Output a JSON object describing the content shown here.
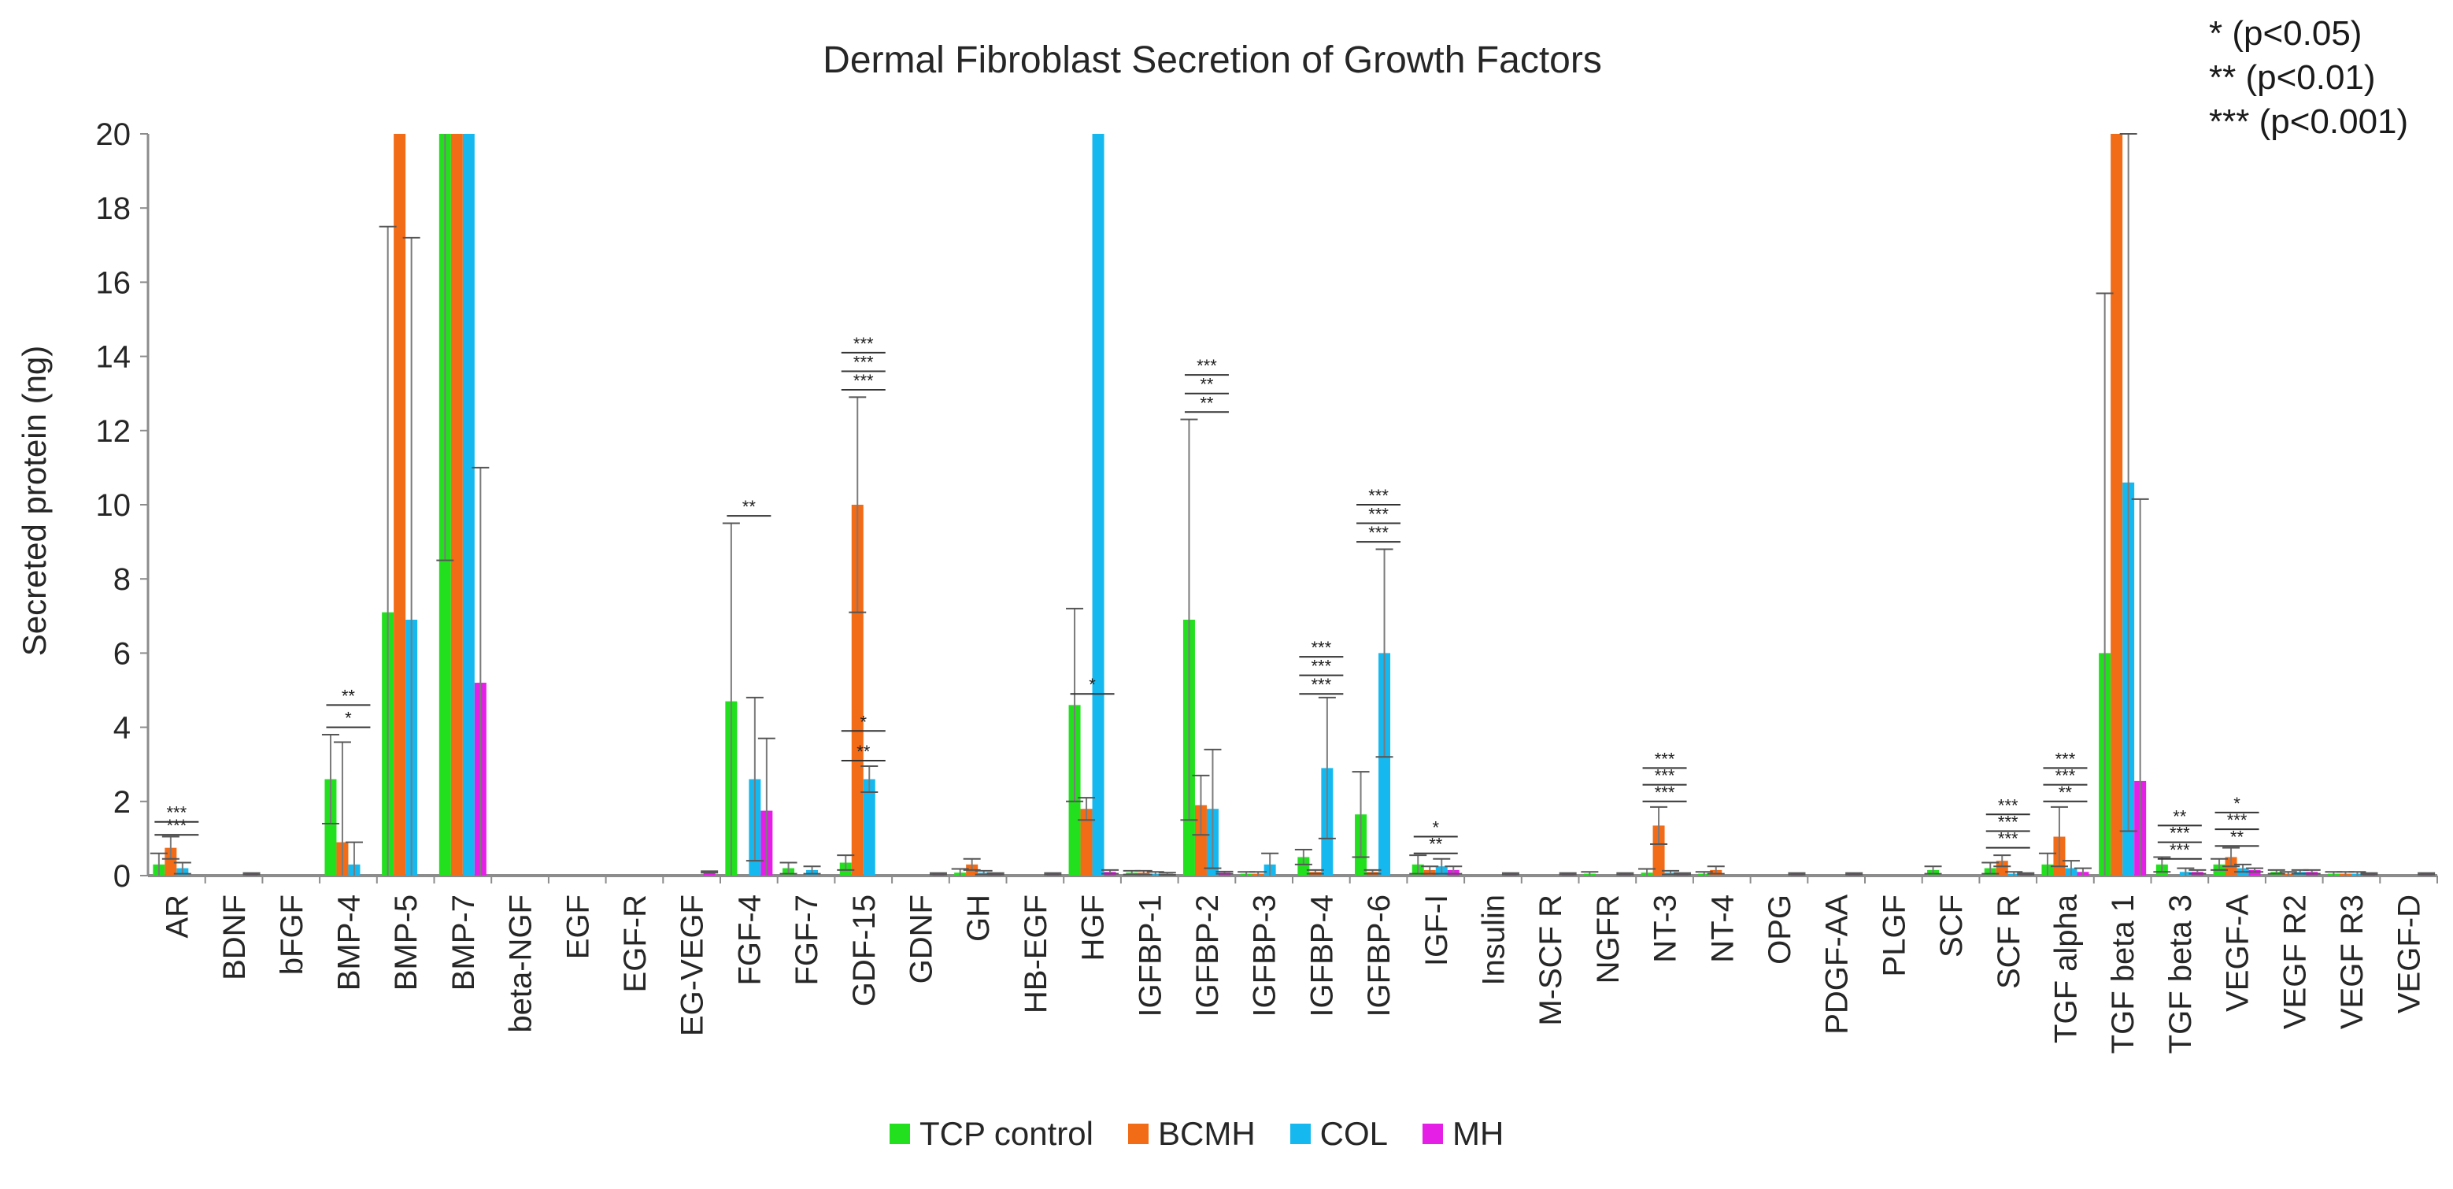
{
  "chart_data": {
    "type": "bar",
    "title": "Dermal Fibroblast Secretion of Growth Factors",
    "xlabel": "",
    "ylabel": "Secreted protein (ng)",
    "ylim": [
      0,
      20
    ],
    "yticks": [
      0,
      2,
      4,
      6,
      8,
      10,
      12,
      14,
      16,
      18,
      20
    ],
    "grid": false,
    "legend_position": "bottom",
    "categories": [
      "AR",
      "BDNF",
      "bFGF",
      "BMP-4",
      "BMP-5",
      "BMP-7",
      "beta-NGF",
      "EGF",
      "EGF-R",
      "EG-VEGF",
      "FGF-4",
      "FGF-7",
      "GDF-15",
      "GDNF",
      "GH",
      "HB-EGF",
      "HGF",
      "IGFBP-1",
      "IGFBP-2",
      "IGFBP-3",
      "IGFBP-4",
      "IGFBP-6",
      "IGF-I",
      "Insulin",
      "M-SCF R",
      "NGFR",
      "NT-3",
      "NT-4",
      "OPG",
      "PDGF-AA",
      "PLGF",
      "SCF",
      "SCF R",
      "TGF alpha",
      "TGF beta 1",
      "TGF beta 3",
      "VEGF-A",
      "VEGF R2",
      "VEGF R3",
      "VEGF-D"
    ],
    "series": [
      {
        "name": "TCP control",
        "color": "#22e01e",
        "values": [
          0.3,
          0,
          0,
          2.6,
          7.1,
          20,
          0,
          0,
          0,
          0,
          4.7,
          0.2,
          0.35,
          0,
          0.08,
          0,
          4.6,
          0.08,
          6.9,
          0.05,
          0.5,
          1.65,
          0.3,
          0,
          0,
          0.05,
          0.08,
          0.05,
          0,
          0,
          0,
          0.15,
          0.2,
          0.3,
          6.0,
          0.3,
          0.3,
          0.1,
          0.05,
          0
        ],
        "errors": [
          0.3,
          0,
          0,
          1.2,
          10.4,
          11.5,
          0,
          0,
          0,
          0,
          4.8,
          0.15,
          0.2,
          0,
          0.1,
          0,
          2.6,
          0.05,
          5.4,
          0.05,
          0.2,
          1.15,
          0.25,
          0,
          0,
          0.05,
          0.1,
          0.05,
          0,
          0,
          0,
          0.1,
          0.15,
          0.3,
          9.7,
          0.2,
          0.15,
          0.05,
          0.05,
          0
        ]
      },
      {
        "name": "BCMH",
        "color": "#f26b17",
        "values": [
          0.75,
          0,
          0,
          0.9,
          20,
          20,
          0,
          0,
          0,
          0,
          0,
          0,
          10.0,
          0,
          0.3,
          0,
          1.8,
          0.08,
          1.9,
          0.05,
          0.1,
          0.1,
          0.15,
          0,
          0,
          0,
          1.35,
          0.15,
          0,
          0,
          0,
          0,
          0.4,
          1.05,
          20,
          0,
          0.5,
          0.05,
          0.05,
          0
        ],
        "errors": [
          0.3,
          0,
          0,
          2.7,
          0,
          0,
          0,
          0,
          0,
          0,
          0,
          0,
          2.9,
          0,
          0.15,
          0,
          0.3,
          0.05,
          0.8,
          0.05,
          0.05,
          0.05,
          0.1,
          0,
          0,
          0,
          0.5,
          0.1,
          0,
          0,
          0,
          0,
          0.15,
          0.8,
          0,
          0,
          0.25,
          0.05,
          0.05,
          0
        ]
      },
      {
        "name": "COL",
        "color": "#16b9ef",
        "values": [
          0.2,
          0,
          0,
          0.3,
          6.9,
          20,
          0,
          0,
          0,
          0,
          2.6,
          0.15,
          2.6,
          0,
          0.08,
          0,
          20,
          0.05,
          1.8,
          0.3,
          2.9,
          6.0,
          0.25,
          0,
          0,
          0,
          0.08,
          0,
          0,
          0,
          0,
          0,
          0.05,
          0.2,
          10.6,
          0.1,
          0.2,
          0.1,
          0.05,
          0
        ],
        "errors": [
          0.15,
          0,
          0,
          0.6,
          10.3,
          0,
          0,
          0,
          0,
          0,
          2.2,
          0.1,
          0.35,
          0,
          0.05,
          0,
          0,
          0.05,
          1.6,
          0.3,
          1.9,
          2.8,
          0.2,
          0,
          0,
          0,
          0.05,
          0,
          0,
          0,
          0,
          0,
          0.05,
          0.2,
          9.4,
          0.1,
          0.1,
          0.05,
          0.05,
          0
        ]
      },
      {
        "name": "MH",
        "color": "#e61fe6",
        "values": [
          0,
          0.05,
          0,
          0,
          0,
          5.2,
          0,
          0,
          0,
          0.1,
          1.75,
          0,
          0,
          0.05,
          0.05,
          0.05,
          0.1,
          0.05,
          0.08,
          0,
          0,
          0,
          0.15,
          0.05,
          0.05,
          0.05,
          0.05,
          0,
          0.05,
          0.05,
          0,
          0,
          0.05,
          0.1,
          2.55,
          0.1,
          0.15,
          0.1,
          0.05,
          0.05
        ],
        "errors": [
          0,
          0.02,
          0,
          0,
          0,
          5.8,
          0,
          0,
          0,
          0.02,
          1.95,
          0,
          0,
          0.02,
          0.02,
          0.02,
          0.05,
          0.03,
          0.03,
          0,
          0,
          0,
          0.1,
          0.02,
          0.02,
          0.02,
          0.02,
          0,
          0.02,
          0.02,
          0,
          0,
          0.02,
          0.1,
          7.6,
          0.05,
          0.05,
          0.05,
          0.02,
          0.02
        ]
      }
    ],
    "annotations": [
      {
        "category": "AR",
        "labels": [
          "***",
          "***"
        ],
        "y": [
          1.1,
          1.45
        ]
      },
      {
        "category": "BMP-4",
        "labels": [
          "*",
          "**"
        ],
        "y": [
          4.0,
          4.6
        ]
      },
      {
        "category": "FGF-4",
        "labels": [
          "**"
        ],
        "y": [
          9.7
        ]
      },
      {
        "category": "GDF-15",
        "labels": [
          "*",
          "***",
          "***",
          "***"
        ],
        "y": [
          3.9,
          13.1,
          13.6,
          14.1
        ]
      },
      {
        "category": "GDF-15",
        "labels": [
          "**"
        ],
        "y": [
          3.1
        ]
      },
      {
        "category": "HGF",
        "labels": [
          "*"
        ],
        "y": [
          4.9
        ]
      },
      {
        "category": "IGFBP-2",
        "labels": [
          "**",
          "**",
          "***"
        ],
        "y": [
          12.5,
          13.0,
          13.5
        ]
      },
      {
        "category": "IGFBP-4",
        "labels": [
          "***",
          "***",
          "***"
        ],
        "y": [
          4.9,
          5.4,
          5.9
        ]
      },
      {
        "category": "IGFBP-6",
        "labels": [
          "***",
          "***",
          "***"
        ],
        "y": [
          9.0,
          9.5,
          10.0
        ]
      },
      {
        "category": "IGF-I",
        "labels": [
          "**",
          "*"
        ],
        "y": [
          0.6,
          1.05
        ]
      },
      {
        "category": "NT-3",
        "labels": [
          "***",
          "***",
          "***"
        ],
        "y": [
          2.0,
          2.45,
          2.9
        ]
      },
      {
        "category": "SCF R",
        "labels": [
          "***",
          "***",
          "***"
        ],
        "y": [
          0.75,
          1.2,
          1.65
        ]
      },
      {
        "category": "TGF alpha",
        "labels": [
          "**",
          "***",
          "***"
        ],
        "y": [
          2.0,
          2.45,
          2.9
        ]
      },
      {
        "category": "TGF beta 3",
        "labels": [
          "***",
          "***",
          "**"
        ],
        "y": [
          0.45,
          0.9,
          1.35
        ]
      },
      {
        "category": "VEGF-A",
        "labels": [
          "**",
          "***",
          "*"
        ],
        "y": [
          0.8,
          1.25,
          1.7
        ]
      }
    ]
  },
  "significance_notes": [
    "* (p<0.05)",
    "** (p<0.01)",
    "*** (p<0.001)"
  ]
}
